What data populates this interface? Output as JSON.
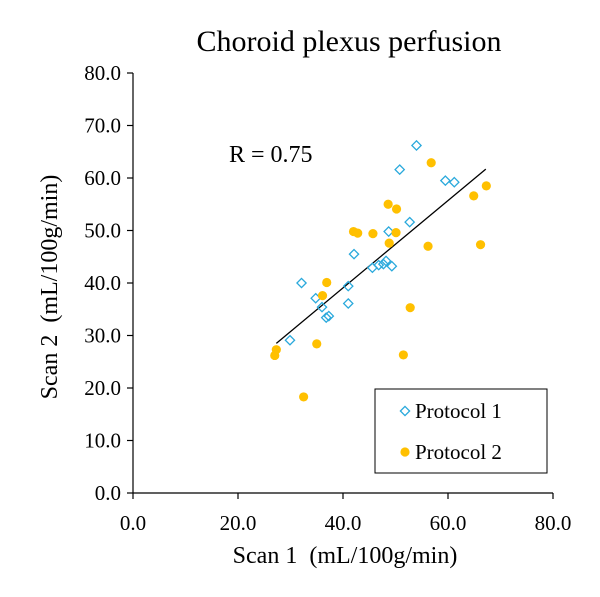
{
  "chart_data": {
    "type": "scatter",
    "title": "Choroid plexus perfusion",
    "xlabel": "Scan 1  (mL/100g/min)",
    "ylabel": "Scan 2  (mL/100g/min)",
    "xlim": [
      0,
      80
    ],
    "ylim": [
      0,
      80
    ],
    "xticks": [
      "0.0",
      "20.0",
      "40.0",
      "60.0",
      "80.0"
    ],
    "yticks": [
      "0.0",
      "10.0",
      "20.0",
      "30.0",
      "40.0",
      "50.0",
      "60.0",
      "70.0",
      "80.0"
    ],
    "xtick_values": [
      0,
      20,
      40,
      60,
      80
    ],
    "ytick_values": [
      0,
      10,
      20,
      30,
      40,
      50,
      60,
      70,
      80
    ],
    "grid": false,
    "legend_position": "bottom-right",
    "annotation": "R = 0.75",
    "trendline": {
      "x": [
        27.3,
        67.2
      ],
      "y": [
        28.5,
        61.7
      ]
    },
    "series": [
      {
        "name": "Protocol 1",
        "marker": "diamond-open",
        "color": "#2aa9dc",
        "x": [
          54.0,
          50.8,
          59.5,
          61.2,
          52.7,
          48.7,
          42.1,
          48.2,
          47.7,
          46.8,
          49.3,
          45.6,
          41.0,
          32.1,
          34.8,
          36.0,
          41.0,
          37.3,
          36.8,
          29.9
        ],
        "y": [
          66.2,
          61.6,
          59.5,
          59.2,
          51.6,
          49.8,
          45.5,
          44.2,
          43.6,
          43.4,
          43.2,
          42.9,
          39.4,
          40.0,
          37.1,
          35.4,
          36.1,
          33.7,
          33.4,
          29.1
        ]
      },
      {
        "name": "Protocol 2",
        "marker": "circle-filled",
        "color": "#ffc000",
        "x": [
          56.8,
          67.3,
          64.9,
          48.6,
          50.2,
          42.0,
          42.8,
          45.7,
          50.1,
          48.8,
          56.2,
          66.2,
          36.9,
          36.1,
          52.8,
          35.0,
          51.5,
          27.3,
          27.0,
          32.5
        ],
        "y": [
          62.9,
          58.5,
          56.6,
          55.0,
          54.1,
          49.8,
          49.5,
          49.4,
          49.6,
          47.6,
          47.0,
          47.3,
          40.1,
          37.6,
          35.3,
          28.4,
          26.3,
          27.3,
          26.2,
          18.3
        ]
      }
    ]
  },
  "colors": {
    "protocol1": "#2aa9dc",
    "protocol2": "#ffc000",
    "axis": "#000000"
  }
}
